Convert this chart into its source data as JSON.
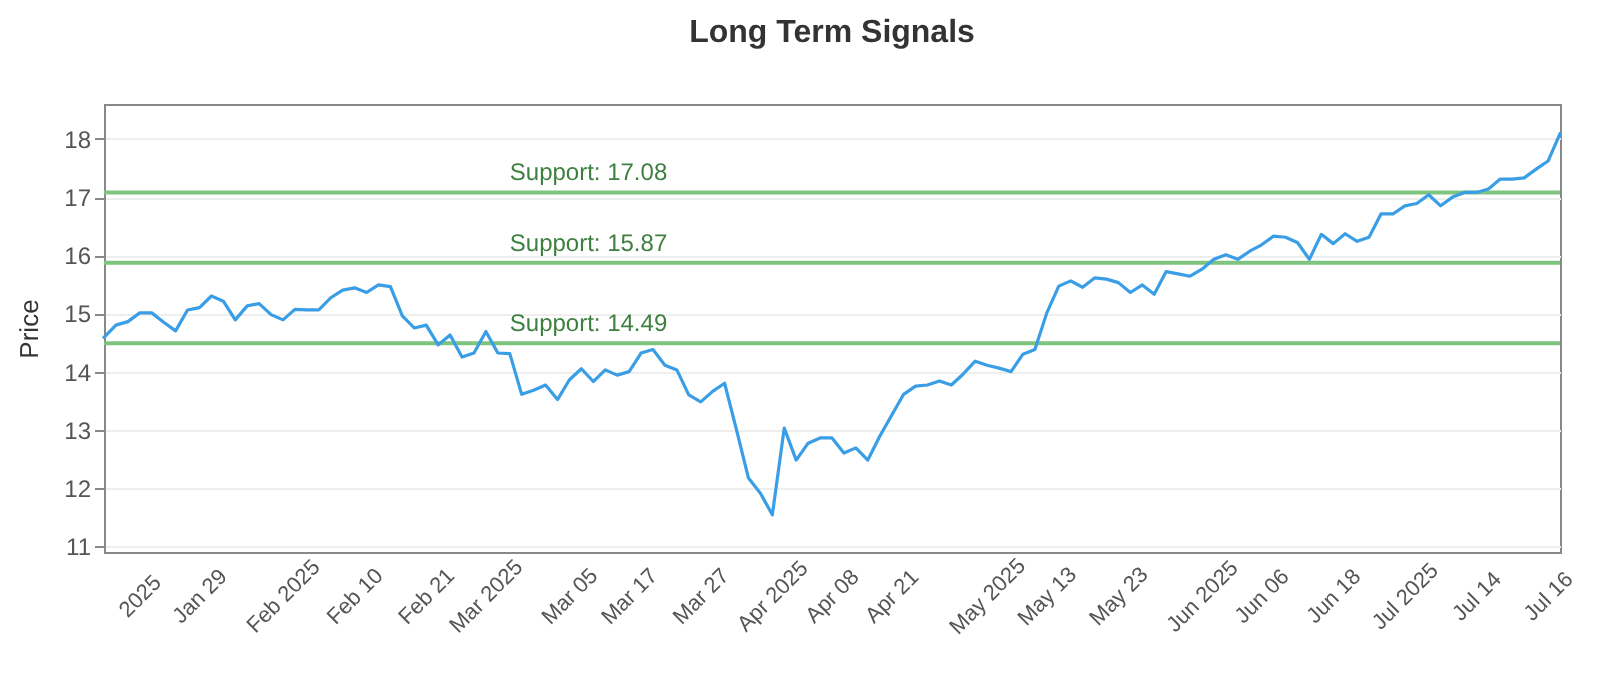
{
  "chart_data": {
    "type": "line",
    "title": "Long Term Signals",
    "ylabel": "Price",
    "categories": [
      null,
      null,
      null,
      "2025",
      null,
      null,
      null,
      null,
      "Jan 29",
      null,
      null,
      null,
      null,
      null,
      null,
      "Feb 2025",
      null,
      null,
      null,
      null,
      null,
      "Feb 10",
      null,
      null,
      null,
      null,
      null,
      "Feb 21",
      null,
      null,
      null,
      null,
      "Mar 2025",
      null,
      null,
      null,
      null,
      null,
      null,
      "Mar 05",
      null,
      null,
      null,
      null,
      "Mar 17",
      null,
      null,
      null,
      null,
      null,
      "Mar 27",
      null,
      null,
      null,
      null,
      null,
      "Apr 2025",
      null,
      null,
      null,
      null,
      "Apr 08",
      null,
      null,
      null,
      null,
      "Apr 21",
      null,
      null,
      null,
      null,
      null,
      null,
      null,
      "May 2025",
      null,
      null,
      null,
      null,
      "May 13",
      null,
      null,
      null,
      null,
      null,
      "May 23",
      null,
      null,
      null,
      null,
      null,
      null,
      "Jun 2025",
      null,
      null,
      null,
      null,
      "Jun 06",
      null,
      null,
      null,
      null,
      null,
      "Jun 18",
      null,
      null,
      null,
      null,
      null,
      "Jul 2025",
      null,
      null,
      null,
      null,
      null,
      "Jul 14",
      null,
      null,
      null,
      null,
      null,
      "Jul 16",
      null
    ],
    "series": [
      {
        "color": "#3a9ee6",
        "values": [
          14.59,
          14.8,
          14.86,
          15.01,
          15.01,
          14.85,
          14.7,
          15.06,
          15.1,
          15.3,
          15.21,
          14.89,
          15.13,
          15.17,
          14.98,
          14.89,
          15.07,
          15.06,
          15.06,
          15.27,
          15.4,
          15.44,
          15.36,
          15.49,
          15.46,
          14.96,
          14.75,
          14.8,
          14.46,
          14.63,
          14.25,
          14.32,
          14.69,
          14.32,
          14.31,
          13.61,
          13.68,
          13.77,
          13.52,
          13.86,
          14.05,
          13.83,
          14.03,
          13.94,
          14.0,
          14.32,
          14.38,
          14.11,
          14.03,
          13.6,
          13.48,
          13.66,
          13.8,
          13.0,
          12.17,
          11.91,
          11.54,
          13.03,
          12.48,
          12.77,
          12.86,
          12.86,
          12.6,
          12.69,
          12.48,
          12.89,
          13.25,
          13.61,
          13.75,
          13.77,
          13.84,
          13.77,
          13.96,
          14.18,
          14.11,
          14.06,
          14.0,
          14.3,
          14.38,
          15.01,
          15.47,
          15.56,
          15.45,
          15.61,
          15.59,
          15.53,
          15.36,
          15.49,
          15.33,
          15.72,
          15.68,
          15.64,
          15.76,
          15.93,
          16.01,
          15.93,
          16.07,
          16.18,
          16.33,
          16.31,
          16.22,
          15.93,
          16.36,
          16.2,
          16.37,
          16.24,
          16.31,
          16.71,
          16.71,
          16.85,
          16.89,
          17.04,
          16.85,
          17.0,
          17.08,
          17.08,
          17.14,
          17.31,
          17.31,
          17.33,
          17.48,
          17.62,
          18.09
        ]
      }
    ],
    "ylim": [
      10.9,
      18.6
    ],
    "yticks": [
      11,
      12,
      13,
      14,
      15,
      16,
      17,
      18
    ],
    "grid": "y",
    "marker": "none",
    "line_style": "solid",
    "ref_lines": [
      {
        "axis": "y",
        "value": 17.08,
        "label": "Support: 17.08",
        "color": "#7ec47e"
      },
      {
        "axis": "y",
        "value": 15.87,
        "label": "Support: 15.87",
        "color": "#7ec47e"
      },
      {
        "axis": "y",
        "value": 14.49,
        "label": "Support: 14.49",
        "color": "#7ec47e"
      }
    ]
  }
}
